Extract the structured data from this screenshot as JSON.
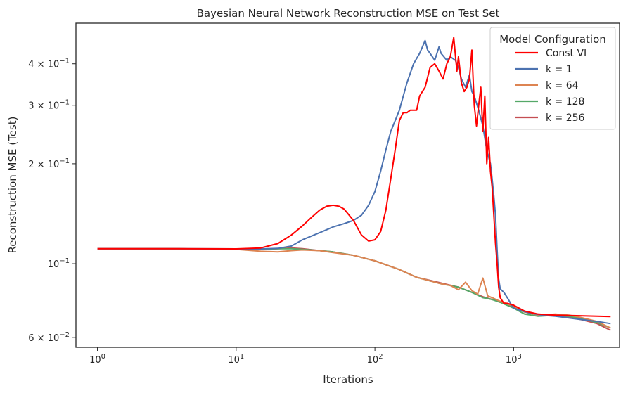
{
  "chart_data": {
    "type": "line",
    "title": "Bayesian Neural Network Reconstruction MSE on Test Set",
    "xlabel": "Iterations",
    "ylabel": "Reconstruction MSE (Test)",
    "xscale": "log",
    "yscale": "log",
    "xlim": [
      0.7,
      5800
    ],
    "ylim": [
      0.056,
      0.53
    ],
    "x_ticks": [
      {
        "value": 1,
        "base": "10",
        "exp": "0"
      },
      {
        "value": 10,
        "base": "10",
        "exp": "1"
      },
      {
        "value": 100,
        "base": "10",
        "exp": "2"
      },
      {
        "value": 1000,
        "base": "10",
        "exp": "3"
      }
    ],
    "y_ticks": [
      {
        "value": 0.06,
        "mant": "6 × 10",
        "exp": "−2"
      },
      {
        "value": 0.1,
        "mant": "10",
        "exp": "−1"
      },
      {
        "value": 0.2,
        "mant": "2 × 10",
        "exp": "−1"
      },
      {
        "value": 0.3,
        "mant": "3 × 10",
        "exp": "−1"
      },
      {
        "value": 0.4,
        "mant": "4 × 10",
        "exp": "−1"
      }
    ],
    "grid": false,
    "legend": {
      "title": "Model Configuration",
      "position": "top-right"
    },
    "series": [
      {
        "name": "Const VI",
        "color": "#ff0000",
        "points": [
          [
            1,
            0.111
          ],
          [
            3,
            0.111
          ],
          [
            10,
            0.1108
          ],
          [
            15,
            0.1115
          ],
          [
            20,
            0.115
          ],
          [
            25,
            0.122
          ],
          [
            30,
            0.13
          ],
          [
            35,
            0.138
          ],
          [
            40,
            0.145
          ],
          [
            45,
            0.149
          ],
          [
            50,
            0.15
          ],
          [
            55,
            0.149
          ],
          [
            60,
            0.146
          ],
          [
            70,
            0.135
          ],
          [
            80,
            0.122
          ],
          [
            90,
            0.117
          ],
          [
            100,
            0.118
          ],
          [
            110,
            0.125
          ],
          [
            120,
            0.145
          ],
          [
            130,
            0.18
          ],
          [
            140,
            0.22
          ],
          [
            150,
            0.27
          ],
          [
            160,
            0.285
          ],
          [
            170,
            0.285
          ],
          [
            180,
            0.29
          ],
          [
            200,
            0.29
          ],
          [
            210,
            0.32
          ],
          [
            230,
            0.34
          ],
          [
            250,
            0.39
          ],
          [
            270,
            0.4
          ],
          [
            290,
            0.38
          ],
          [
            310,
            0.36
          ],
          [
            330,
            0.4
          ],
          [
            350,
            0.42
          ],
          [
            370,
            0.48
          ],
          [
            390,
            0.38
          ],
          [
            400,
            0.42
          ],
          [
            420,
            0.35
          ],
          [
            440,
            0.33
          ],
          [
            460,
            0.34
          ],
          [
            480,
            0.36
          ],
          [
            500,
            0.44
          ],
          [
            520,
            0.3
          ],
          [
            540,
            0.26
          ],
          [
            560,
            0.3
          ],
          [
            580,
            0.34
          ],
          [
            600,
            0.25
          ],
          [
            620,
            0.32
          ],
          [
            640,
            0.2
          ],
          [
            660,
            0.24
          ],
          [
            680,
            0.19
          ],
          [
            700,
            0.17
          ],
          [
            720,
            0.14
          ],
          [
            740,
            0.115
          ],
          [
            760,
            0.1
          ],
          [
            780,
            0.085
          ],
          [
            800,
            0.079
          ],
          [
            850,
            0.076
          ],
          [
            900,
            0.076
          ],
          [
            1000,
            0.075
          ],
          [
            1200,
            0.072
          ],
          [
            1500,
            0.0705
          ],
          [
            2000,
            0.07
          ],
          [
            3000,
            0.0697
          ],
          [
            4000,
            0.0695
          ],
          [
            5000,
            0.0693
          ]
        ]
      },
      {
        "name": "k = 1",
        "color": "#4c72b0",
        "points": [
          [
            1,
            0.111
          ],
          [
            3,
            0.111
          ],
          [
            10,
            0.1108
          ],
          [
            15,
            0.1108
          ],
          [
            20,
            0.1112
          ],
          [
            25,
            0.113
          ],
          [
            30,
            0.118
          ],
          [
            40,
            0.124
          ],
          [
            50,
            0.129
          ],
          [
            60,
            0.132
          ],
          [
            70,
            0.135
          ],
          [
            80,
            0.14
          ],
          [
            90,
            0.15
          ],
          [
            100,
            0.165
          ],
          [
            110,
            0.19
          ],
          [
            120,
            0.22
          ],
          [
            130,
            0.25
          ],
          [
            150,
            0.29
          ],
          [
            170,
            0.35
          ],
          [
            190,
            0.4
          ],
          [
            210,
            0.43
          ],
          [
            220,
            0.45
          ],
          [
            230,
            0.47
          ],
          [
            240,
            0.44
          ],
          [
            250,
            0.43
          ],
          [
            270,
            0.41
          ],
          [
            290,
            0.45
          ],
          [
            300,
            0.43
          ],
          [
            330,
            0.41
          ],
          [
            350,
            0.42
          ],
          [
            380,
            0.41
          ],
          [
            400,
            0.39
          ],
          [
            420,
            0.36
          ],
          [
            450,
            0.34
          ],
          [
            480,
            0.37
          ],
          [
            500,
            0.33
          ],
          [
            520,
            0.32
          ],
          [
            560,
            0.29
          ],
          [
            600,
            0.26
          ],
          [
            640,
            0.22
          ],
          [
            680,
            0.2
          ],
          [
            700,
            0.18
          ],
          [
            720,
            0.16
          ],
          [
            740,
            0.14
          ],
          [
            760,
            0.11
          ],
          [
            780,
            0.09
          ],
          [
            800,
            0.084
          ],
          [
            850,
            0.082
          ],
          [
            900,
            0.079
          ],
          [
            950,
            0.076
          ],
          [
            1000,
            0.0735
          ],
          [
            1100,
            0.0725
          ],
          [
            1300,
            0.071
          ],
          [
            1600,
            0.07
          ],
          [
            2000,
            0.0695
          ],
          [
            3000,
            0.068
          ],
          [
            4000,
            0.067
          ],
          [
            5000,
            0.066
          ]
        ]
      },
      {
        "name": "k = 64",
        "color": "#dd8452",
        "points": [
          [
            1,
            0.111
          ],
          [
            3,
            0.111
          ],
          [
            10,
            0.1105
          ],
          [
            15,
            0.109
          ],
          [
            20,
            0.1085
          ],
          [
            25,
            0.1095
          ],
          [
            30,
            0.11
          ],
          [
            40,
            0.1095
          ],
          [
            50,
            0.108
          ],
          [
            70,
            0.106
          ],
          [
            100,
            0.102
          ],
          [
            150,
            0.096
          ],
          [
            200,
            0.091
          ],
          [
            300,
            0.087
          ],
          [
            350,
            0.086
          ],
          [
            400,
            0.0835
          ],
          [
            450,
            0.088
          ],
          [
            500,
            0.083
          ],
          [
            550,
            0.081
          ],
          [
            600,
            0.0905
          ],
          [
            650,
            0.08
          ],
          [
            700,
            0.079
          ],
          [
            800,
            0.077
          ],
          [
            1000,
            0.0745
          ],
          [
            1200,
            0.0715
          ],
          [
            1500,
            0.07
          ],
          [
            2000,
            0.0705
          ],
          [
            2500,
            0.07
          ],
          [
            3000,
            0.069
          ],
          [
            4000,
            0.067
          ],
          [
            5000,
            0.064
          ]
        ]
      },
      {
        "name": "k = 128",
        "color": "#55a868",
        "points": [
          [
            1,
            0.111
          ],
          [
            3,
            0.111
          ],
          [
            10,
            0.1105
          ],
          [
            15,
            0.1105
          ],
          [
            20,
            0.111
          ],
          [
            25,
            0.111
          ],
          [
            30,
            0.1105
          ],
          [
            40,
            0.1095
          ],
          [
            50,
            0.1085
          ],
          [
            70,
            0.106
          ],
          [
            100,
            0.102
          ],
          [
            150,
            0.096
          ],
          [
            200,
            0.091
          ],
          [
            300,
            0.087
          ],
          [
            400,
            0.085
          ],
          [
            500,
            0.082
          ],
          [
            600,
            0.079
          ],
          [
            700,
            0.078
          ],
          [
            800,
            0.0765
          ],
          [
            1000,
            0.0735
          ],
          [
            1200,
            0.0705
          ],
          [
            1500,
            0.0695
          ],
          [
            2000,
            0.07
          ],
          [
            2500,
            0.0695
          ],
          [
            3000,
            0.0685
          ],
          [
            4000,
            0.0665
          ],
          [
            5000,
            0.064
          ]
        ]
      },
      {
        "name": "k = 256",
        "color": "#c44e52",
        "points": [
          [
            1,
            0.111
          ],
          [
            3,
            0.111
          ],
          [
            10,
            0.1105
          ],
          [
            15,
            0.1105
          ],
          [
            20,
            0.111
          ],
          [
            25,
            0.1115
          ],
          [
            30,
            0.111
          ],
          [
            40,
            0.1095
          ],
          [
            50,
            0.1085
          ],
          [
            70,
            0.106
          ],
          [
            100,
            0.102
          ],
          [
            150,
            0.096
          ],
          [
            200,
            0.091
          ],
          [
            300,
            0.0875
          ],
          [
            400,
            0.085
          ],
          [
            500,
            0.082
          ],
          [
            600,
            0.0795
          ],
          [
            700,
            0.078
          ],
          [
            800,
            0.077
          ],
          [
            1000,
            0.074
          ],
          [
            1200,
            0.0715
          ],
          [
            1500,
            0.0705
          ],
          [
            2000,
            0.07
          ],
          [
            2500,
            0.069
          ],
          [
            3000,
            0.068
          ],
          [
            4000,
            0.066
          ],
          [
            5000,
            0.063
          ]
        ]
      }
    ]
  }
}
